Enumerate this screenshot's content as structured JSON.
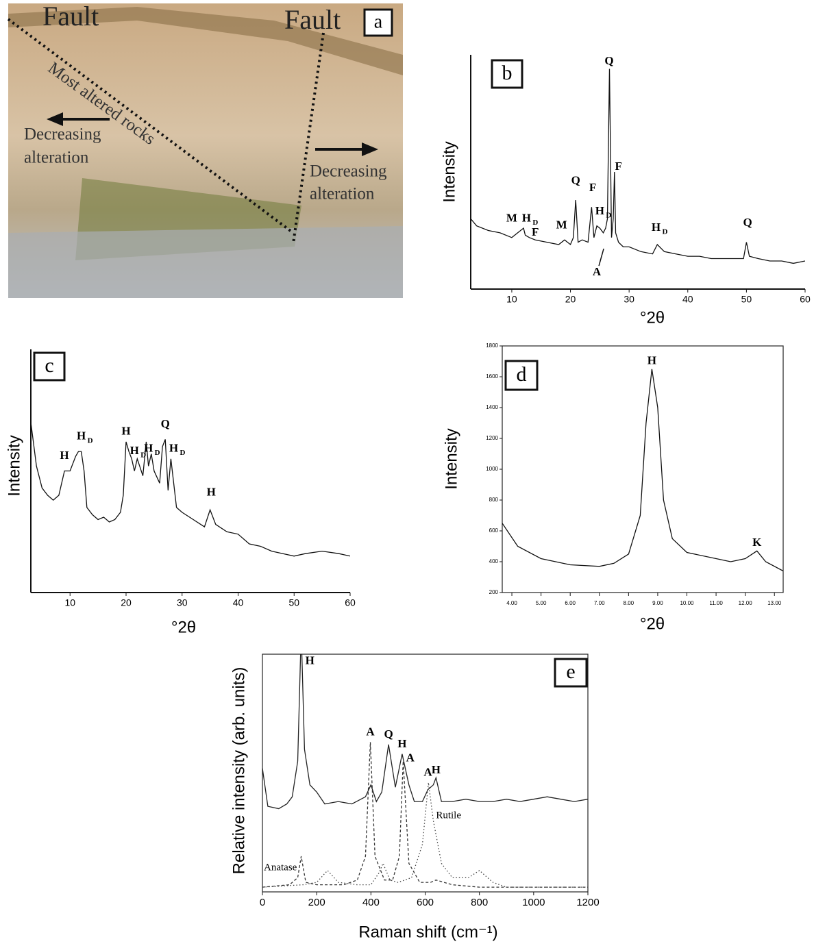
{
  "photo": {
    "panel_label": "a",
    "texts": [
      "Fault",
      "Fault",
      "Most altered rocks",
      "Decreasing",
      "alteration",
      "Decreasing",
      "alteration"
    ]
  },
  "chart_data": [
    {
      "type": "line",
      "panel_label": "b",
      "y_label": "Intensity",
      "x_label": "°2θ",
      "xlim": [
        3,
        60
      ],
      "ylim": [
        0,
        100
      ],
      "xticks": [
        10,
        20,
        30,
        40,
        50,
        60
      ],
      "frame": false,
      "series": [
        {
          "color": "#111111",
          "dash": "solid",
          "x": [
            3,
            4,
            6,
            8,
            10,
            11,
            12,
            12.3,
            13,
            14,
            16,
            18,
            19,
            20,
            20.5,
            20.9,
            21.3,
            22,
            23,
            23.6,
            24,
            24.5,
            25,
            25.6,
            26,
            26.3,
            26.65,
            27,
            27.3,
            27.5,
            27.7,
            28.2,
            29,
            30,
            32,
            34,
            34.8,
            36,
            38,
            40,
            42,
            44,
            46,
            48,
            49.5,
            50,
            50.5,
            52,
            54,
            56,
            58,
            60
          ],
          "values": [
            30,
            27,
            25,
            24,
            22,
            24,
            26,
            23,
            22,
            21,
            20,
            19,
            21,
            19,
            22,
            38,
            20,
            21,
            20,
            35,
            22,
            27,
            26,
            24,
            26,
            30,
            94,
            22,
            30,
            50,
            24,
            20,
            18,
            18,
            16,
            15,
            19,
            16,
            15,
            14,
            14,
            13,
            13,
            13,
            13,
            20,
            14,
            13,
            12,
            12,
            11,
            12
          ]
        }
      ],
      "annotations": [
        {
          "label": "M",
          "x": 10,
          "y": 30
        },
        {
          "label": "H",
          "sub": "D",
          "x": 12.5,
          "y": 30
        },
        {
          "label": "F",
          "x": 14,
          "y": 24
        },
        {
          "label": "M",
          "x": 18.5,
          "y": 27
        },
        {
          "label": "Q",
          "x": 20.9,
          "y": 46
        },
        {
          "label": "F",
          "x": 23.8,
          "y": 43
        },
        {
          "label": "H",
          "sub": "D",
          "x": 25,
          "y": 33
        },
        {
          "label": "Q",
          "x": 26.6,
          "y": 97
        },
        {
          "label": "F",
          "x": 28.2,
          "y": 52
        },
        {
          "label": "H",
          "sub": "D",
          "x": 34.6,
          "y": 26
        },
        {
          "label": "Q",
          "x": 50.2,
          "y": 28
        },
        {
          "label": "A",
          "x": 24.5,
          "y": 7
        }
      ]
    },
    {
      "type": "line",
      "panel_label": "c",
      "y_label": "Intensity",
      "x_label": "°2θ",
      "xlim": [
        3,
        60
      ],
      "ylim": [
        0,
        100
      ],
      "xticks": [
        10,
        20,
        30,
        40,
        50,
        60
      ],
      "frame": false,
      "series": [
        {
          "color": "#111111",
          "dash": "solid",
          "x": [
            3,
            4,
            5,
            6,
            7,
            8,
            9,
            10,
            11,
            11.5,
            12,
            12.5,
            13,
            14,
            15,
            16,
            17,
            18,
            19,
            19.5,
            20,
            20.5,
            21,
            21.5,
            22,
            23,
            23.6,
            24,
            24.5,
            25,
            26,
            26.5,
            27,
            27.5,
            28,
            29,
            30,
            32,
            34,
            35,
            36,
            38,
            40,
            42,
            44,
            46,
            48,
            50,
            52,
            55,
            58,
            60
          ],
          "values": [
            70,
            52,
            43,
            40,
            38,
            40,
            50,
            50,
            56,
            58,
            58,
            50,
            35,
            32,
            30,
            31,
            29,
            30,
            33,
            40,
            62,
            58,
            55,
            50,
            55,
            48,
            62,
            52,
            57,
            50,
            45,
            60,
            63,
            42,
            55,
            35,
            33,
            30,
            27,
            34,
            28,
            25,
            24,
            20,
            19,
            17,
            16,
            15,
            16,
            17,
            16,
            15
          ]
        }
      ],
      "annotations": [
        {
          "label": "H",
          "x": 9,
          "y": 56
        },
        {
          "label": "H",
          "sub": "D",
          "x": 12,
          "y": 64
        },
        {
          "label": "H",
          "x": 20,
          "y": 66
        },
        {
          "label": "H",
          "sub": "D",
          "x": 21.5,
          "y": 58
        },
        {
          "label": "H",
          "sub": "D",
          "x": 24,
          "y": 59
        },
        {
          "label": "Q",
          "x": 27,
          "y": 69
        },
        {
          "label": "H",
          "sub": "D",
          "x": 28.5,
          "y": 59
        },
        {
          "label": "H",
          "x": 35.2,
          "y": 41
        }
      ]
    },
    {
      "type": "line",
      "panel_label": "d",
      "y_label": "Intensity",
      "x_label": "°2θ",
      "xlim": [
        3.67,
        13.3
      ],
      "ylim": [
        200,
        1800
      ],
      "xticks": [
        {
          "value": 4,
          "label": "4.00"
        },
        {
          "value": 5,
          "label": "5.00"
        },
        {
          "value": 6,
          "label": "6.00"
        },
        {
          "value": 7,
          "label": "7.00"
        },
        {
          "value": 8,
          "label": "8.00"
        },
        {
          "value": 9,
          "label": "9.00"
        },
        {
          "value": 10,
          "label": "10.00"
        },
        {
          "value": 11,
          "label": "11.00"
        },
        {
          "value": 12,
          "label": "12.00"
        },
        {
          "value": 13,
          "label": "13.00"
        }
      ],
      "yticks": [
        200,
        400,
        600,
        800,
        1000,
        1200,
        1400,
        1600,
        1800
      ],
      "frame": true,
      "series": [
        {
          "color": "#111111",
          "dash": "solid",
          "x": [
            3.67,
            4.2,
            5,
            6,
            7,
            7.5,
            8,
            8.4,
            8.6,
            8.8,
            9.0,
            9.2,
            9.5,
            10,
            11,
            11.5,
            12,
            12.4,
            12.7,
            13.3
          ],
          "values": [
            650,
            500,
            420,
            380,
            370,
            390,
            450,
            700,
            1300,
            1650,
            1400,
            800,
            550,
            460,
            420,
            400,
            420,
            470,
            400,
            340
          ]
        }
      ],
      "annotations": [
        {
          "label": "H",
          "x": 8.8,
          "y": 1700
        },
        {
          "label": "K",
          "x": 12.4,
          "y": 520
        }
      ]
    },
    {
      "type": "line",
      "panel_label": "e",
      "y_label": "Relative intensity (arb. units)",
      "x_label": "Raman shift (cm⁻¹)",
      "xlim": [
        0,
        1200
      ],
      "ylim": [
        0,
        100
      ],
      "xticks": [
        0,
        200,
        400,
        600,
        800,
        1000,
        1200
      ],
      "frame": true,
      "series": [
        {
          "color": "#222222",
          "dash": "solid",
          "x": [
            0,
            20,
            60,
            90,
            110,
            130,
            143,
            155,
            175,
            200,
            230,
            280,
            330,
            380,
            400,
            420,
            440,
            465,
            490,
            515,
            540,
            560,
            590,
            610,
            630,
            640,
            660,
            700,
            750,
            800,
            850,
            900,
            950,
            1000,
            1050,
            1100,
            1150,
            1200
          ],
          "values": [
            52,
            36,
            35,
            37,
            40,
            55,
            110,
            60,
            45,
            42,
            37,
            38,
            37,
            40,
            45,
            38,
            42,
            62,
            44,
            58,
            45,
            38,
            38,
            43,
            45,
            48,
            38,
            38,
            39,
            38,
            38,
            39,
            38,
            39,
            40,
            39,
            38,
            39
          ]
        },
        {
          "name": "Anatase",
          "color": "#333333",
          "dash": "dashed",
          "x": [
            0,
            100,
            130,
            143,
            160,
            200,
            300,
            350,
            380,
            398,
            415,
            450,
            480,
            505,
            519,
            540,
            580,
            620,
            640,
            700,
            800,
            1200
          ],
          "values": [
            2,
            3,
            6,
            15,
            4,
            3,
            3,
            5,
            15,
            63,
            15,
            5,
            5,
            15,
            55,
            12,
            4,
            4,
            5,
            3,
            2,
            2
          ]
        },
        {
          "name": "Rutile",
          "color": "#444444",
          "dash": "dotted",
          "x": [
            0,
            150,
            200,
            240,
            280,
            350,
            400,
            430,
            445,
            470,
            500,
            550,
            590,
            612,
            630,
            660,
            700,
            760,
            800,
            850,
            900,
            1200
          ],
          "values": [
            2,
            3,
            4,
            9,
            4,
            3,
            3,
            8,
            12,
            5,
            4,
            6,
            20,
            46,
            30,
            12,
            6,
            6,
            9,
            4,
            2,
            2
          ]
        }
      ],
      "annotations": [
        {
          "label": "H",
          "x": 175,
          "y": 97
        },
        {
          "label": "A",
          "x": 398,
          "y": 67
        },
        {
          "label": "Q",
          "x": 465,
          "y": 66
        },
        {
          "label": "H",
          "x": 515,
          "y": 62
        },
        {
          "label": "A",
          "x": 545,
          "y": 56
        },
        {
          "label": "A",
          "x": 610,
          "y": 50
        },
        {
          "label": "H",
          "x": 640,
          "y": 51
        }
      ]
    }
  ]
}
